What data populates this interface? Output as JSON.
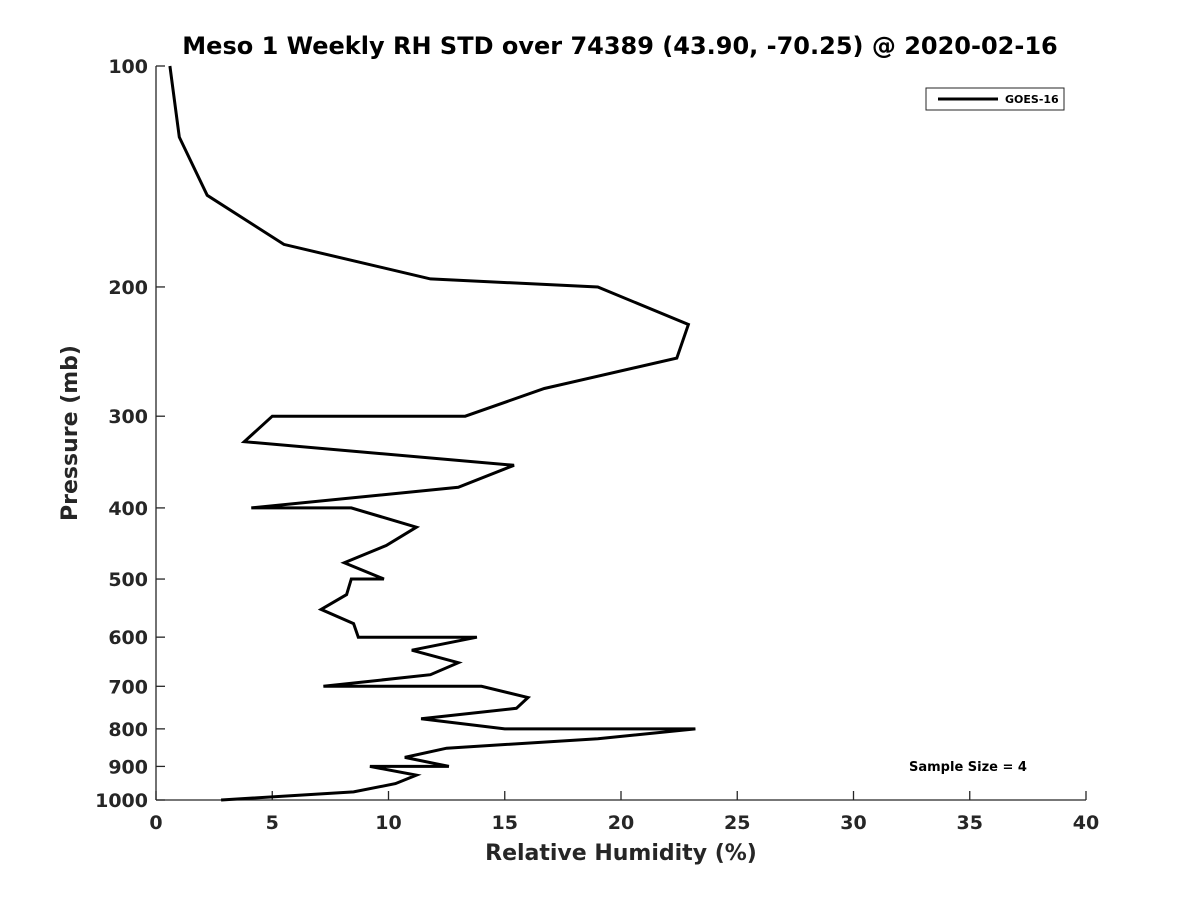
{
  "chart_data": {
    "type": "line",
    "title": "Meso 1 Weekly RH STD over 74389 (43.90, -70.25) @ 2020-02-16",
    "xlabel": "Relative Humidity (%)",
    "ylabel": "Pressure (mb)",
    "xlim": [
      0,
      40
    ],
    "ylim": [
      100,
      1000
    ],
    "y_scale": "log",
    "y_reversed": true,
    "grid": false,
    "legend_position": "top-right",
    "x_ticks": [
      "0",
      "5",
      "10",
      "15",
      "20",
      "25",
      "30",
      "35",
      "40"
    ],
    "y_ticks": [
      "100",
      "200",
      "300",
      "400",
      "500",
      "600",
      "700",
      "800",
      "900",
      "1000"
    ],
    "annotation": "Sample Size = 4",
    "series": [
      {
        "name": "GOES-16",
        "color": "#000000",
        "points": [
          [
            0.6,
            100
          ],
          [
            1.0,
            125
          ],
          [
            2.2,
            150
          ],
          [
            5.5,
            175
          ],
          [
            11.8,
            195
          ],
          [
            19.0,
            200
          ],
          [
            22.9,
            225
          ],
          [
            22.4,
            250
          ],
          [
            16.7,
            275
          ],
          [
            13.3,
            300
          ],
          [
            5.0,
            300
          ],
          [
            3.8,
            325
          ],
          [
            15.4,
            350
          ],
          [
            13.0,
            375
          ],
          [
            4.1,
            400
          ],
          [
            8.4,
            400
          ],
          [
            11.2,
            425
          ],
          [
            9.9,
            450
          ],
          [
            8.1,
            475
          ],
          [
            9.8,
            500
          ],
          [
            8.4,
            500
          ],
          [
            8.2,
            525
          ],
          [
            7.1,
            550
          ],
          [
            8.5,
            575
          ],
          [
            8.7,
            600
          ],
          [
            13.8,
            600
          ],
          [
            11.0,
            625
          ],
          [
            13.0,
            650
          ],
          [
            11.8,
            675
          ],
          [
            7.2,
            700
          ],
          [
            14.0,
            700
          ],
          [
            16.0,
            725
          ],
          [
            15.5,
            750
          ],
          [
            11.4,
            775
          ],
          [
            15.0,
            800
          ],
          [
            23.2,
            800
          ],
          [
            19.0,
            825
          ],
          [
            12.5,
            850
          ],
          [
            10.7,
            875
          ],
          [
            12.6,
            900
          ],
          [
            9.2,
            900
          ],
          [
            11.2,
            925
          ],
          [
            10.3,
            950
          ],
          [
            8.5,
            975
          ],
          [
            2.8,
            1000
          ]
        ]
      }
    ]
  }
}
